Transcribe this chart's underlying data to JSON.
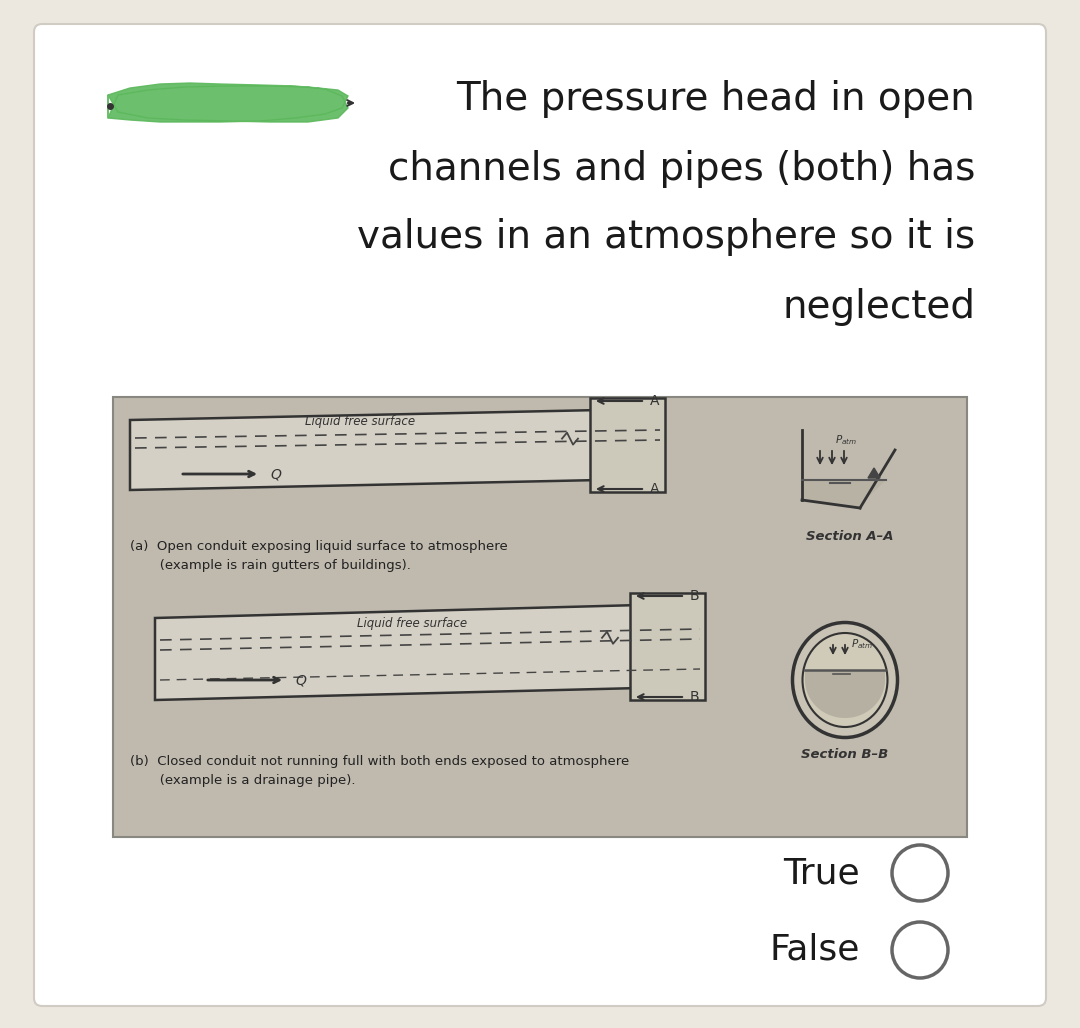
{
  "bg_color": "#ede8df",
  "card_color": "#ffffff",
  "title_lines": [
    "The pressure head in open",
    "channels and pipes (both) has",
    "values in an atmosphere so it is",
    "neglected"
  ],
  "title_fontsize": 28,
  "highlight_color": "#5cb85c",
  "image_bg": "#bfb9ae",
  "true_label": "True",
  "false_label": "False",
  "radio_color": "#555555",
  "caption_a": "(a)  Open conduit exposing liquid surface to atmosphere\n       (example is rain gutters of buildings).",
  "caption_b": "(b)  Closed conduit not running full with both ends exposed to atmosphere\n       (example is a drainage pipe).",
  "section_a_label": "Section A–A",
  "section_b_label": "Section B–B",
  "liquid_free_surface": "Liquid free surface",
  "label_Q": "Q",
  "patm_label": "P"
}
